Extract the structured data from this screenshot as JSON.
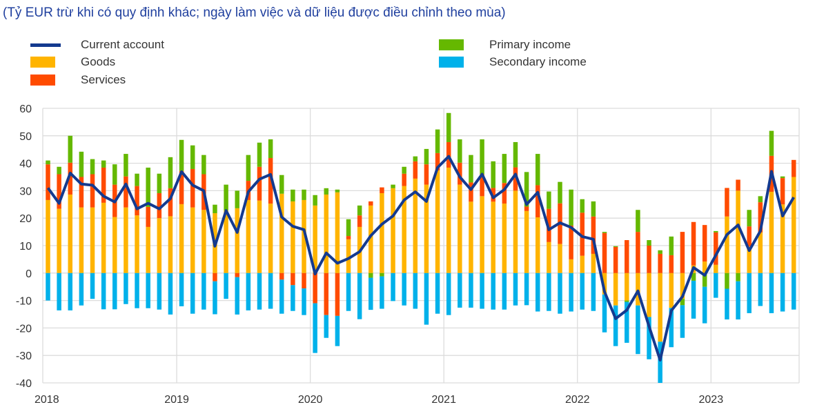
{
  "chart_data": {
    "type": "bar",
    "subtitle": "(Tỷ EUR trừ khi có quy định khác; ngày làm việc và dữ liệu được điều chỉnh theo mùa)",
    "legend": [
      {
        "key": "ca",
        "label": "Current account",
        "kind": "line",
        "color": "#143a8f"
      },
      {
        "key": "goods",
        "label": "Goods",
        "kind": "bar",
        "color": "#ffb400"
      },
      {
        "key": "services",
        "label": "Services",
        "kind": "bar",
        "color": "#ff4b00"
      },
      {
        "key": "primary",
        "label": "Primary income",
        "kind": "bar",
        "color": "#65b800"
      },
      {
        "key": "secondary",
        "label": "Secondary income",
        "kind": "bar",
        "color": "#00b1ea"
      }
    ],
    "ylim": [
      -40,
      60
    ],
    "yticks": [
      60,
      50,
      40,
      30,
      20,
      10,
      0,
      -10,
      -20,
      -30,
      -40
    ],
    "xtick_labels": [
      "2018",
      "2019",
      "2020",
      "2021",
      "2022",
      "2023"
    ],
    "start": "2018-01",
    "frequency": "monthly",
    "grid": true,
    "series": {
      "goods": [
        26.6,
        23.4,
        28.6,
        23.9,
        23.9,
        25.6,
        20.4,
        23.9,
        21.0,
        16.8,
        20.0,
        20.7,
        25.1,
        23.9,
        23.0,
        21.8,
        22.8,
        23.6,
        26.6,
        26.4,
        25.3,
        28.9,
        26.1,
        26.6,
        24.6,
        28.6,
        29.4,
        12.3,
        16.8,
        24.6,
        29.1,
        30.9,
        31.7,
        34.4,
        32.2,
        37.4,
        38.4,
        32.2,
        26.0,
        28.0,
        26.0,
        25.3,
        30.0,
        22.6,
        20.3,
        11.3,
        10.6,
        5.0,
        6.3,
        7.0,
        -7.8,
        -11.8,
        -10.0,
        -11.8,
        -16.0,
        -25.0,
        -12.7,
        -9.4,
        2.8,
        4.2,
        3.0,
        20.6,
        30.0,
        9.7,
        14.8,
        29.6,
        25.0,
        35.0
      ],
      "services": [
        13.0,
        12.6,
        11.6,
        11.1,
        12.1,
        12.8,
        11.8,
        11.3,
        10.7,
        7.3,
        9.1,
        10.2,
        12.1,
        14.0,
        13.0,
        -3.0,
        0,
        -1.5,
        7.0,
        12.3,
        16.6,
        -2.4,
        -4.4,
        -5.6,
        -11.0,
        -15.3,
        -15.6,
        1.2,
        4.2,
        1.5,
        2.1,
        0,
        4.5,
        6.3,
        7.4,
        6.3,
        9.3,
        8.0,
        7.0,
        8.0,
        5.0,
        7.5,
        8.5,
        1.6,
        11.7,
        12.1,
        14.8,
        12.3,
        15.7,
        13.6,
        14.6,
        9.5,
        12.0,
        15.0,
        10.0,
        7.0,
        6.5,
        15.0,
        15.8,
        13.3,
        11.8,
        10.4,
        4.0,
        7.3,
        11.0,
        13.1,
        9.6,
        6.2
      ],
      "primary": [
        1.4,
        2.7,
        9.8,
        9.2,
        5.5,
        2.6,
        7.4,
        8.2,
        4.5,
        14.3,
        7.1,
        11.3,
        11.3,
        8.6,
        7.0,
        3.1,
        9.4,
        6.4,
        9.4,
        8.8,
        6.8,
        6.8,
        4.3,
        3.8,
        3.8,
        2.3,
        1.0,
        6.1,
        3.6,
        -1.7,
        -1.2,
        1.3,
        2.5,
        1.8,
        5.6,
        8.6,
        10.6,
        8.5,
        10.0,
        12.7,
        9.7,
        10.6,
        9.2,
        12.6,
        11.4,
        6.3,
        7.8,
        13.1,
        4.9,
        5.5,
        0.4,
        0.3,
        -0.5,
        8.0,
        2.0,
        1.3,
        6.8,
        -2.3,
        -2.8,
        -5.0,
        0.5,
        -5.7,
        -3.0,
        6.0,
        2.2,
        9.1,
        0.6,
        0
      ],
      "secondary": [
        -10.0,
        -13.6,
        -13.6,
        -11.8,
        -9.4,
        -13.2,
        -13.2,
        -11.3,
        -12.8,
        -12.8,
        -13.3,
        -15.1,
        -12.1,
        -14.8,
        -13.3,
        -12.0,
        -9.4,
        -13.6,
        -13.6,
        -13.3,
        -13.0,
        -12.4,
        -9.4,
        -9.7,
        -18.1,
        -8.3,
        -11.0,
        -13.8,
        -16.8,
        -11.7,
        -11.8,
        -10.2,
        -11.8,
        -13.0,
        -18.8,
        -14.8,
        -15.3,
        -12.6,
        -12.6,
        -13.0,
        -13.3,
        -13.3,
        -11.8,
        -11.7,
        -14.0,
        -13.8,
        -14.8,
        -14.0,
        -13.3,
        -13.8,
        -13.8,
        -14.8,
        -14.9,
        -17.7,
        -15.4,
        -15.0,
        -14.3,
        -11.9,
        -13.8,
        -13.3,
        -9.0,
        -11.2,
        -13.9,
        -14.6,
        -12.0,
        -14.6,
        -14.0,
        -13.3
      ],
      "ca": [
        31.0,
        25.4,
        36.4,
        32.4,
        32.0,
        28.0,
        25.9,
        32.4,
        23.4,
        25.4,
        23.4,
        27.1,
        36.9,
        32.0,
        30.0,
        9.8,
        22.8,
        14.8,
        29.6,
        34.2,
        35.9,
        20.4,
        17.0,
        15.8,
        -0.3,
        7.3,
        3.6,
        5.3,
        7.8,
        13.6,
        17.8,
        20.8,
        26.6,
        29.6,
        26.1,
        38.4,
        42.5,
        35.0,
        30.4,
        36.0,
        27.4,
        30.4,
        36.0,
        25.0,
        29.4,
        15.8,
        18.3,
        16.6,
        13.3,
        12.3,
        -6.8,
        -16.6,
        -13.5,
        -6.5,
        -19.4,
        -31.7,
        -13.7,
        -8.6,
        2.0,
        -0.8,
        6.5,
        14.0,
        17.5,
        8.2,
        15.3,
        37.0,
        20.8,
        27.6
      ]
    }
  }
}
